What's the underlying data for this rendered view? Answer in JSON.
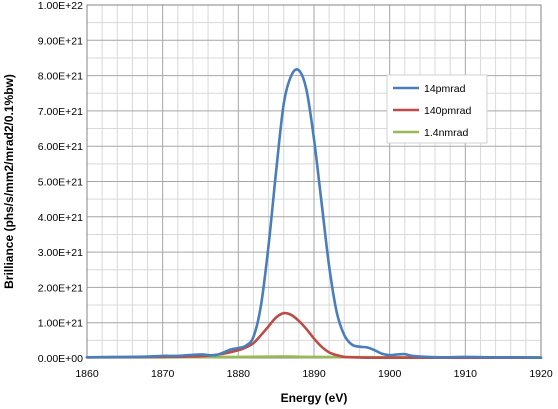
{
  "chart_data": {
    "type": "line",
    "xlabel": "Energy (eV)",
    "ylabel": "Brilliance (phs/s/mm2/mrad2/0.1%bw)",
    "xlim": [
      1860,
      1920
    ],
    "ylim": [
      0,
      1e+22
    ],
    "x_ticks": [
      "1860",
      "1870",
      "1880",
      "1890",
      "1900",
      "1910",
      "1920"
    ],
    "y_ticks": [
      "0.00E+00",
      "1.00E+21",
      "2.00E+21",
      "3.00E+21",
      "4.00E+21",
      "5.00E+21",
      "6.00E+21",
      "7.00E+21",
      "8.00E+21",
      "9.00E+21",
      "1.00E+22"
    ],
    "grid": true,
    "legend_position": "right",
    "series": [
      {
        "name": "14pmrad",
        "color": "#4a7ebb",
        "x": [
          1860,
          1865,
          1868,
          1870,
          1872,
          1875,
          1877,
          1879,
          1880,
          1881,
          1882,
          1883,
          1884,
          1885,
          1886,
          1887,
          1888,
          1889,
          1890,
          1891,
          1892,
          1893,
          1894,
          1895,
          1896,
          1897,
          1898,
          1899,
          1900,
          1901,
          1902,
          1903,
          1905,
          1907,
          1910,
          1914,
          1917,
          1920
        ],
        "values": [
          2e+19,
          3e+19,
          4e+19,
          6e+19,
          6e+19,
          1e+20,
          8e+19,
          2.4e+20,
          2.8e+20,
          3.5e+20,
          6e+20,
          1.5e+21,
          3.2e+21,
          5.3e+21,
          7.2e+21,
          8e+21,
          8.15e+21,
          7.6e+21,
          6.2e+21,
          4.4e+21,
          2.6e+21,
          1.3e+21,
          6.5e+20,
          3.8e+20,
          3.2e+20,
          3e+20,
          2.2e+20,
          1.2e+20,
          8e+19,
          1e+20,
          1.1e+20,
          6e+19,
          3e+19,
          2e+19,
          3e+19,
          2e+19,
          2e+19,
          1e+19
        ]
      },
      {
        "name": "140pmrad",
        "color": "#be4b48",
        "x": [
          1860,
          1870,
          1875,
          1878,
          1880,
          1881,
          1882,
          1883,
          1884,
          1885,
          1886,
          1887,
          1888,
          1889,
          1890,
          1891,
          1892,
          1893,
          1894,
          1895,
          1897,
          1900,
          1910,
          1920
        ],
        "values": [
          2e+19,
          3e+19,
          5e+19,
          1.2e+20,
          2.2e+20,
          3e+20,
          4.2e+20,
          6.5e+20,
          9e+20,
          1.15e+21,
          1.27e+21,
          1.22e+21,
          1.05e+21,
          8.2e+20,
          5.5e+20,
          3.2e+20,
          1.6e+20,
          8e+19,
          3e+19,
          2e+19,
          1e+19,
          1e+19,
          1e+19,
          1e+19
        ]
      },
      {
        "name": "1.4nmrad",
        "color": "#98b954",
        "x": [
          1860,
          1870,
          1880,
          1885,
          1887,
          1890,
          1900,
          1910,
          1920
        ],
        "values": [
          2e+19,
          2e+19,
          3e+19,
          4e+19,
          4e+19,
          3e+19,
          2e+19,
          2e+19,
          2e+19
        ]
      }
    ]
  }
}
